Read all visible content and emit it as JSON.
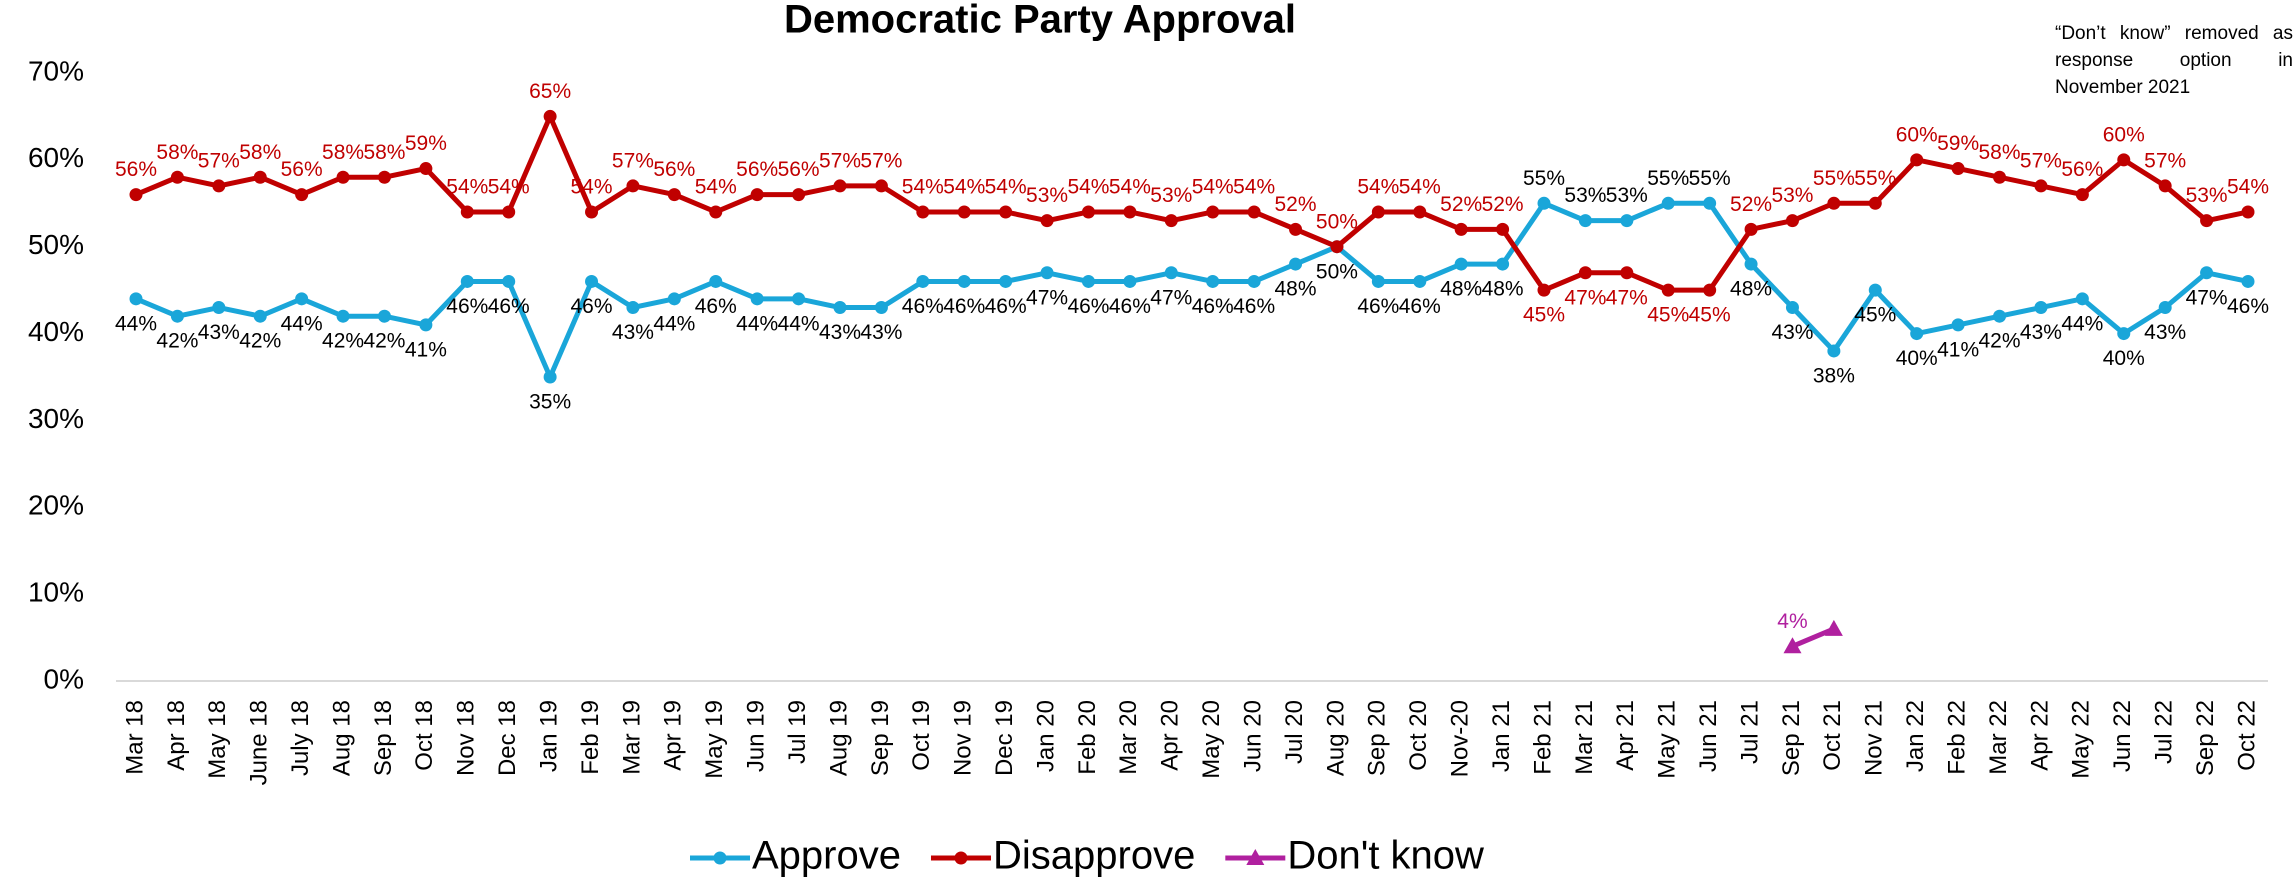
{
  "chart_data": {
    "type": "line",
    "title": "Democratic Party Approval",
    "annotation": "“Don’t know” removed as response option in November 2021",
    "categories": [
      "Mar 18",
      "Apr 18",
      "May 18",
      "June 18",
      "July 18",
      "Aug 18",
      "Sep 18",
      "Oct 18",
      "Nov 18",
      "Dec 18",
      "Jan 19",
      "Feb 19",
      "Mar 19",
      "Apr 19",
      "May 19",
      "Jun 19",
      "Jul 19",
      "Aug 19",
      "Sep 19",
      "Oct 19",
      "Nov 19",
      "Dec 19",
      "Jan 20",
      "Feb 20",
      "Mar 20",
      "Apr 20",
      "May 20",
      "Jun 20",
      "Jul 20",
      "Aug 20",
      "Sep 20",
      "Oct 20",
      "Nov-20",
      "Jan 21",
      "Feb 21",
      "Mar 21",
      "Apr 21",
      "May 21",
      "Jun 21",
      "Jul 21",
      "Sep 21",
      "Oct 21",
      "Nov 21",
      "Jan 22",
      "Feb 22",
      "Mar 22",
      "Apr 22",
      "May 22",
      "Jun 22",
      "Jul 22",
      "Sep 22",
      "Oct 22"
    ],
    "series": [
      {
        "name": "Approve",
        "color": "#1aa6d9",
        "marker": "circle",
        "values": [
          44,
          42,
          43,
          42,
          44,
          42,
          42,
          41,
          46,
          46,
          35,
          46,
          43,
          44,
          46,
          44,
          44,
          43,
          43,
          46,
          46,
          46,
          47,
          46,
          46,
          47,
          46,
          46,
          48,
          50,
          46,
          46,
          48,
          48,
          55,
          53,
          53,
          55,
          55,
          48,
          43,
          38,
          45,
          40,
          41,
          42,
          43,
          44,
          40,
          43,
          47,
          46
        ],
        "value_labels": [
          "44%",
          "42%",
          "43%",
          "42%",
          "44%",
          "42%",
          "42%",
          "41%",
          "46%",
          "46%",
          "35%",
          "46%",
          "43%",
          "44%",
          "46%",
          "44%",
          "44%",
          "43%",
          "43%",
          "46%",
          "46%",
          "46%",
          "47%",
          "46%",
          "46%",
          "47%",
          "46%",
          "46%",
          "48%",
          "50%",
          "46%",
          "46%",
          "48%",
          "48%",
          "55%",
          "53%",
          "53%",
          "55%",
          "55%",
          "48%",
          "43%",
          "38%",
          "45%",
          "40%",
          "41%",
          "42%",
          "43%",
          "44%",
          "40%",
          "43%",
          "47%",
          "46%"
        ]
      },
      {
        "name": "Disapprove",
        "color": "#c00000",
        "marker": "circle",
        "values": [
          56,
          58,
          57,
          58,
          56,
          58,
          58,
          59,
          54,
          54,
          65,
          54,
          57,
          56,
          54,
          56,
          56,
          57,
          57,
          54,
          54,
          54,
          53,
          54,
          54,
          53,
          54,
          54,
          52,
          50,
          54,
          54,
          52,
          52,
          45,
          47,
          47,
          45,
          45,
          52,
          53,
          55,
          55,
          60,
          59,
          58,
          57,
          56,
          60,
          57,
          53,
          54
        ],
        "value_labels": [
          "56%",
          "58%",
          "57%",
          "58%",
          "56%",
          "58%",
          "58%",
          "59%",
          "54%",
          "54%",
          "65%",
          "54%",
          "57%",
          "56%",
          "54%",
          "56%",
          "56%",
          "57%",
          "57%",
          "54%",
          "54%",
          "54%",
          "53%",
          "54%",
          "54%",
          "53%",
          "54%",
          "54%",
          "52%",
          "50%",
          "54%",
          "54%",
          "52%",
          "52%",
          "45%",
          "47%",
          "47%",
          "45%",
          "45%",
          "52%",
          "53%",
          "55%",
          "55%",
          "60%",
          "59%",
          "58%",
          "57%",
          "56%",
          "60%",
          "57%",
          "53%",
          "54%"
        ]
      },
      {
        "name": "Don't know",
        "color": "#b0209f",
        "marker": "triangle",
        "values": [
          null,
          null,
          null,
          null,
          null,
          null,
          null,
          null,
          null,
          null,
          null,
          null,
          null,
          null,
          null,
          null,
          null,
          null,
          null,
          null,
          null,
          null,
          null,
          null,
          null,
          null,
          null,
          null,
          null,
          null,
          null,
          null,
          null,
          null,
          null,
          null,
          null,
          null,
          null,
          null,
          4,
          6,
          null,
          null,
          null,
          null,
          null,
          null,
          null,
          null,
          null,
          null
        ],
        "value_labels": [
          null,
          null,
          null,
          null,
          null,
          null,
          null,
          null,
          null,
          null,
          null,
          null,
          null,
          null,
          null,
          null,
          null,
          null,
          null,
          null,
          null,
          null,
          null,
          null,
          null,
          null,
          null,
          null,
          null,
          null,
          null,
          null,
          null,
          null,
          null,
          null,
          null,
          null,
          null,
          null,
          "4%",
          null,
          null,
          null,
          null,
          null,
          null,
          null,
          null,
          null,
          null,
          null
        ]
      }
    ],
    "ylim": [
      0,
      70
    ],
    "yticks": [
      {
        "value": 0,
        "label": "0%"
      },
      {
        "value": 10,
        "label": "10%"
      },
      {
        "value": 20,
        "label": "20%"
      },
      {
        "value": 30,
        "label": "30%"
      },
      {
        "value": 40,
        "label": "40%"
      },
      {
        "value": 50,
        "label": "50%"
      },
      {
        "value": 60,
        "label": "60%"
      },
      {
        "value": 70,
        "label": "70%"
      }
    ],
    "grid": false,
    "legend": "bottom"
  }
}
